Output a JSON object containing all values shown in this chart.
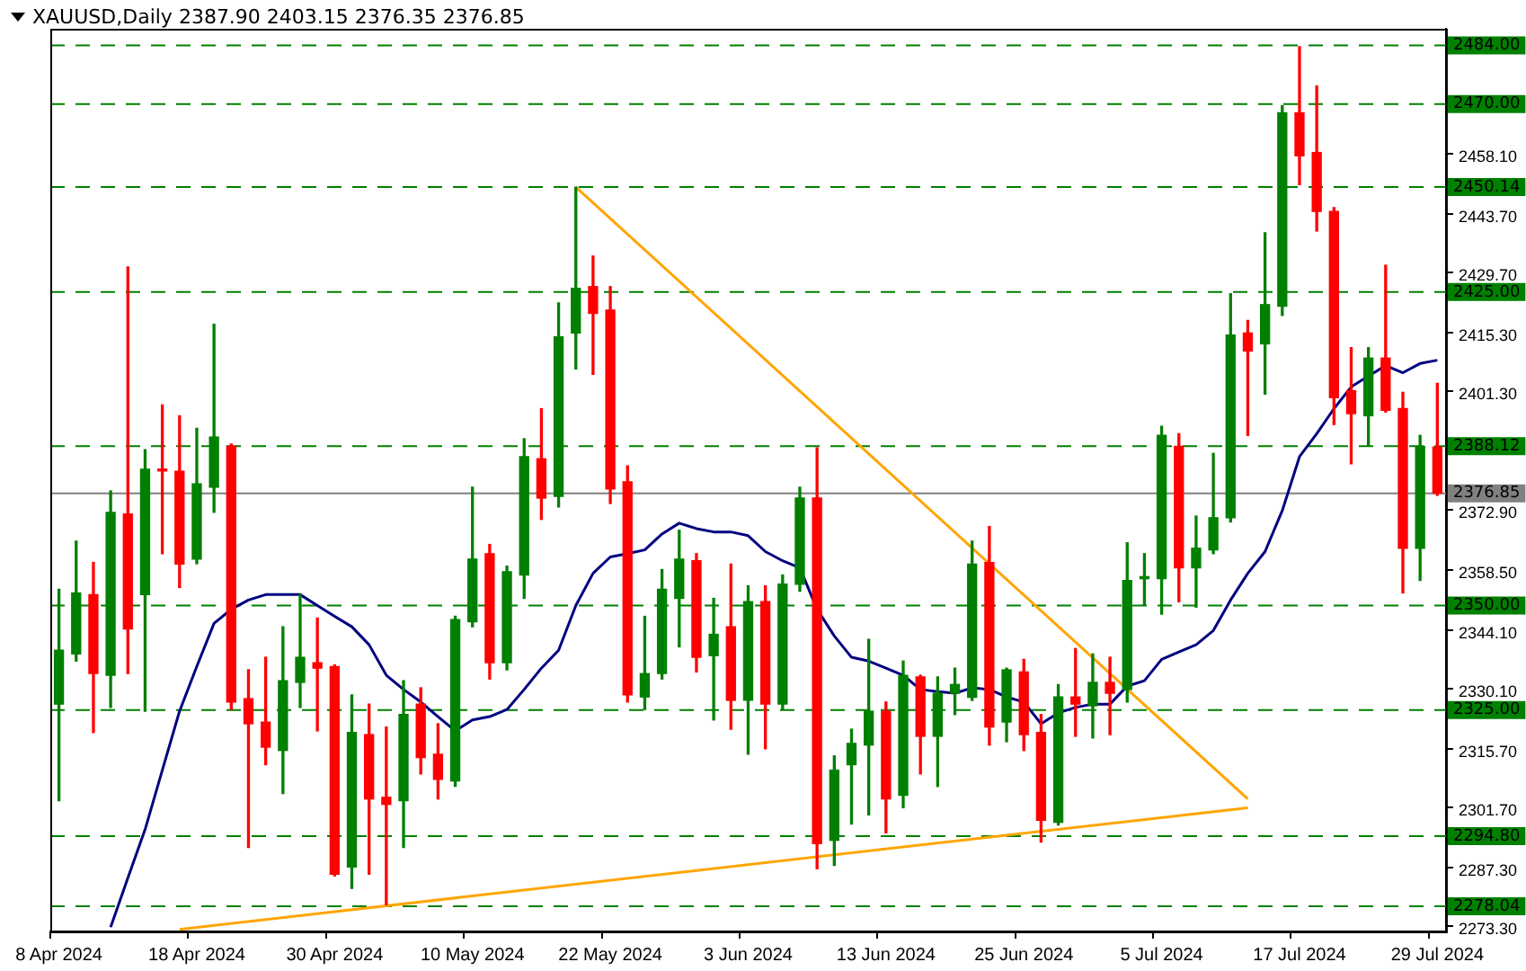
{
  "chart_data": {
    "type": "candlestick",
    "title": "XAUUSD,Daily 2387.90 2403.15 2376.35 2376.85",
    "categories": [
      "8 Apr 2024",
      null,
      null,
      null,
      null,
      null,
      null,
      null,
      "18 Apr 2024",
      null,
      null,
      null,
      null,
      null,
      null,
      null,
      "30 Apr 2024",
      null,
      null,
      null,
      null,
      null,
      null,
      null,
      "10 May 2024",
      null,
      null,
      null,
      null,
      null,
      null,
      null,
      "22 May 2024",
      null,
      null,
      null,
      null,
      null,
      null,
      null,
      "3 Jun 2024",
      null,
      null,
      null,
      null,
      null,
      null,
      null,
      "13 Jun 2024",
      null,
      null,
      null,
      null,
      null,
      null,
      null,
      "25 Jun 2024",
      null,
      null,
      null,
      null,
      null,
      null,
      null,
      "5 Jul 2024",
      null,
      null,
      null,
      null,
      null,
      null,
      null,
      "17 Jul 2024",
      null,
      null,
      null,
      null,
      null,
      null,
      null,
      "29 Jul 2024"
    ],
    "ohlc": [
      [
        2326.4,
        2353.9,
        2303.3,
        2339.3
      ],
      [
        2338.4,
        2365.4,
        2336.7,
        2353.0
      ],
      [
        2352.6,
        2360.3,
        2319.6,
        2333.7
      ],
      [
        2333.3,
        2377.4,
        2325.6,
        2372.3
      ],
      [
        2371.9,
        2431.0,
        2333.7,
        2344.4
      ],
      [
        2352.6,
        2387.3,
        2324.7,
        2382.6
      ],
      [
        2382.6,
        2398.0,
        2362.4,
        2382.2
      ],
      [
        2382.1,
        2395.4,
        2354.3,
        2359.9
      ],
      [
        2361.1,
        2392.4,
        2360.0,
        2379.1
      ],
      [
        2378.3,
        2417.3,
        2372.3,
        2390.3
      ],
      [
        2388.1,
        2388.6,
        2325.1,
        2326.9
      ],
      [
        2327.7,
        2334.6,
        2292.1,
        2321.7
      ],
      [
        2322.1,
        2337.6,
        2311.9,
        2316.1
      ],
      [
        2315.3,
        2344.9,
        2305.0,
        2332.0
      ],
      [
        2331.6,
        2352.6,
        2325.6,
        2337.6
      ],
      [
        2336.3,
        2347.0,
        2320.0,
        2335.0
      ],
      [
        2335.4,
        2335.8,
        2285.3,
        2285.7
      ],
      [
        2287.4,
        2328.6,
        2282.3,
        2319.6
      ],
      [
        2319.1,
        2326.4,
        2285.7,
        2303.7
      ],
      [
        2304.1,
        2320.9,
        2278.4,
        2302.4
      ],
      [
        2303.3,
        2332.0,
        2292.1,
        2323.9
      ],
      [
        2326.4,
        2330.3,
        2309.7,
        2313.6
      ],
      [
        2314.4,
        2321.7,
        2303.7,
        2308.4
      ],
      [
        2308.0,
        2347.4,
        2306.7,
        2346.6
      ],
      [
        2346.1,
        2378.3,
        2344.9,
        2361.1
      ],
      [
        2362.4,
        2364.6,
        2332.4,
        2336.3
      ],
      [
        2336.3,
        2359.4,
        2334.6,
        2358.1
      ],
      [
        2357.3,
        2389.9,
        2351.7,
        2385.6
      ],
      [
        2385.1,
        2397.1,
        2370.6,
        2375.7
      ],
      [
        2376.1,
        2422.4,
        2373.6,
        2414.3
      ],
      [
        2415.2,
        2450.1,
        2406.6,
        2425.9
      ],
      [
        2426.3,
        2433.6,
        2405.3,
        2419.9
      ],
      [
        2420.7,
        2426.3,
        2374.4,
        2377.9
      ],
      [
        2379.6,
        2383.4,
        2326.9,
        2328.6
      ],
      [
        2328.1,
        2347.4,
        2325.1,
        2333.7
      ],
      [
        2333.7,
        2358.6,
        2332.4,
        2353.9
      ],
      [
        2351.7,
        2368.0,
        2340.1,
        2361.1
      ],
      [
        2360.7,
        2362.4,
        2334.1,
        2337.6
      ],
      [
        2338.0,
        2351.7,
        2322.6,
        2343.1
      ],
      [
        2344.9,
        2359.9,
        2320.4,
        2327.3
      ],
      [
        2327.3,
        2354.7,
        2314.4,
        2350.9
      ],
      [
        2350.9,
        2354.7,
        2315.7,
        2326.4
      ],
      [
        2326.4,
        2357.3,
        2325.1,
        2355.1
      ],
      [
        2355.1,
        2378.3,
        2353.4,
        2375.7
      ],
      [
        2375.7,
        2387.7,
        2287.0,
        2293.0
      ],
      [
        2293.8,
        2314.0,
        2287.8,
        2310.6
      ],
      [
        2311.9,
        2320.4,
        2297.7,
        2317.0
      ],
      [
        2316.6,
        2341.9,
        2299.9,
        2324.7
      ],
      [
        2324.7,
        2326.9,
        2295.6,
        2303.7
      ],
      [
        2304.6,
        2336.7,
        2301.6,
        2333.3
      ],
      [
        2332.9,
        2333.3,
        2309.7,
        2318.7
      ],
      [
        2318.7,
        2332.9,
        2306.7,
        2329.0
      ],
      [
        2329.0,
        2335.0,
        2323.9,
        2331.1
      ],
      [
        2328.0,
        2365.4,
        2327.3,
        2359.9
      ],
      [
        2360.3,
        2368.9,
        2316.6,
        2320.9
      ],
      [
        2322.1,
        2335.0,
        2317.4,
        2334.6
      ],
      [
        2334.1,
        2337.1,
        2315.3,
        2319.1
      ],
      [
        2319.6,
        2323.9,
        2293.4,
        2298.6
      ],
      [
        2298.1,
        2331.1,
        2297.5,
        2328.1
      ],
      [
        2328.1,
        2339.7,
        2318.7,
        2326.4
      ],
      [
        2326.0,
        2338.4,
        2318.3,
        2331.6
      ],
      [
        2331.6,
        2337.6,
        2319.1,
        2329.0
      ],
      [
        2329.9,
        2365.0,
        2326.9,
        2356.0
      ],
      [
        2356.4,
        2362.4,
        2350.0,
        2356.9
      ],
      [
        2356.4,
        2392.9,
        2347.9,
        2390.7
      ],
      [
        2388.1,
        2391.1,
        2350.9,
        2359.0
      ],
      [
        2359.0,
        2371.4,
        2349.6,
        2363.7
      ],
      [
        2363.3,
        2386.4,
        2362.4,
        2371.0
      ],
      [
        2371.0,
        2424.6,
        2370.0,
        2414.7
      ],
      [
        2415.2,
        2418.2,
        2390.7,
        2410.9
      ],
      [
        2412.6,
        2439.2,
        2400.6,
        2422.0
      ],
      [
        2421.6,
        2469.6,
        2419.4,
        2467.9
      ],
      [
        2467.9,
        2483.7,
        2450.7,
        2457.6
      ],
      [
        2458.4,
        2474.3,
        2439.6,
        2444.3
      ],
      [
        2444.3,
        2445.2,
        2393.3,
        2399.7
      ],
      [
        2401.4,
        2411.7,
        2383.9,
        2395.9
      ],
      [
        2395.4,
        2411.7,
        2388.1,
        2409.2
      ],
      [
        2409.2,
        2431.4,
        2396.3,
        2396.7
      ],
      [
        2397.1,
        2401.0,
        2353.0,
        2363.7
      ],
      [
        2363.7,
        2390.7,
        2356.0,
        2388.1
      ],
      [
        2387.9,
        2403.15,
        2376.35,
        2376.85
      ]
    ],
    "colors": [
      "#008000",
      "#008000",
      "#ff0000",
      "#008000",
      "#ff0000",
      "#008000",
      "#ff0000",
      "#ff0000",
      "#008000",
      "#008000",
      "#ff0000",
      "#ff0000",
      "#ff0000",
      "#008000",
      "#008000",
      "#ff0000",
      "#ff0000",
      "#008000",
      "#ff0000",
      "#ff0000",
      "#008000",
      "#ff0000",
      "#ff0000",
      "#008000",
      "#008000",
      "#ff0000",
      "#008000",
      "#008000",
      "#ff0000",
      "#008000",
      "#008000",
      "#ff0000",
      "#ff0000",
      "#ff0000",
      "#008000",
      "#008000",
      "#008000",
      "#ff0000",
      "#008000",
      "#ff0000",
      "#008000",
      "#ff0000",
      "#008000",
      "#008000",
      "#ff0000",
      "#008000",
      "#008000",
      "#008000",
      "#ff0000",
      "#008000",
      "#ff0000",
      "#008000",
      "#008000",
      "#008000",
      "#ff0000",
      "#008000",
      "#ff0000",
      "#ff0000",
      "#008000",
      "#ff0000",
      "#008000",
      "#ff0000",
      "#008000",
      "#008000",
      "#008000",
      "#ff0000",
      "#008000",
      "#008000",
      "#008000",
      "#ff0000",
      "#008000",
      "#008000",
      "#ff0000",
      "#ff0000",
      "#ff0000",
      "#ff0000",
      "#008000",
      "#ff0000",
      "#ff0000",
      "#008000",
      "#ff0000"
    ],
    "series": [
      {
        "type": "line",
        "color": "#000080",
        "values": [
          null,
          null,
          null,
          2273,
          2284.8,
          2296.4,
          2310.6,
          2324.7,
          2335.4,
          2345.7,
          2349.1,
          2351.3,
          2352.6,
          2352.6,
          2352.6,
          2350,
          2347.4,
          2344.9,
          2340.6,
          2333.3,
          2329.9,
          2326.9,
          2323.4,
          2320,
          2322.6,
          2323.4,
          2325.1,
          2329.9,
          2335,
          2339.3,
          2350,
          2357.7,
          2361.6,
          2362.4,
          2363.3,
          2367.1,
          2369.7,
          2368.4,
          2367.6,
          2367.6,
          2366.7,
          2362.9,
          2360.7,
          2359,
          2349.1,
          2342.7,
          2337.6,
          2336.7,
          2335,
          2333.3,
          2329.9,
          2329.4,
          2329,
          2330.3,
          2329.9,
          2328.1,
          2326.9,
          2321.7,
          2324.3,
          2325.6,
          2326.4,
          2326.4,
          2330.7,
          2332,
          2337.1,
          2338.9,
          2340.6,
          2344,
          2351.3,
          2357.7,
          2362.9,
          2372.7,
          2385.6,
          2391.1,
          2397.1,
          2402.3,
          2404.9,
          2407.4,
          2405.7,
          2407.9,
          2408.7
        ]
      },
      {
        "type": "line",
        "color": "#ffa500",
        "values": [
          null,
          null,
          null,
          null,
          null,
          null,
          null,
          2272.5,
          null,
          null,
          null,
          null,
          null,
          null,
          null,
          null,
          null,
          null,
          null,
          null,
          null,
          null,
          null,
          null,
          null,
          null,
          null,
          null,
          null,
          null,
          null,
          null,
          null,
          null,
          null,
          null,
          null,
          null,
          null,
          null,
          null,
          null,
          null,
          null,
          null,
          null,
          null,
          null,
          null,
          null,
          null,
          null,
          null,
          null,
          null,
          null,
          null,
          null,
          null,
          null,
          null,
          null,
          null,
          null,
          null,
          null,
          null,
          null,
          null,
          2301.6,
          null,
          null,
          null,
          null,
          null,
          null,
          null,
          null,
          null,
          null,
          null
        ]
      },
      {
        "type": "line",
        "color": "#ffa500",
        "values": [
          null,
          null,
          null,
          null,
          null,
          null,
          null,
          null,
          null,
          null,
          null,
          null,
          null,
          null,
          null,
          null,
          null,
          null,
          null,
          null,
          null,
          null,
          null,
          null,
          null,
          null,
          null,
          null,
          null,
          null,
          2450.1,
          null,
          null,
          null,
          null,
          null,
          null,
          null,
          null,
          null,
          null,
          null,
          null,
          null,
          null,
          null,
          null,
          null,
          null,
          null,
          null,
          null,
          null,
          null,
          null,
          null,
          null,
          null,
          null,
          null,
          null,
          null,
          null,
          null,
          null,
          null,
          null,
          null,
          null,
          2303.7,
          null,
          null,
          null,
          null,
          null,
          null,
          null,
          null,
          null,
          null,
          null
        ]
      }
    ],
    "ylim": [
      2272,
      2488
    ],
    "yticks": [
      {
        "value": 2273.3,
        "label": "2273.30"
      },
      {
        "value": 2287.3,
        "label": "2287.30"
      },
      {
        "value": 2301.7,
        "label": "2301.70"
      },
      {
        "value": 2315.7,
        "label": "2315.70"
      },
      {
        "value": 2330.1,
        "label": "2330.10"
      },
      {
        "value": 2344.1,
        "label": "2344.10"
      },
      {
        "value": 2358.5,
        "label": "2358.50"
      },
      {
        "value": 2372.9,
        "label": "2372.90"
      },
      {
        "value": 2401.3,
        "label": "2401.30"
      },
      {
        "value": 2415.3,
        "label": "2415.30"
      },
      {
        "value": 2429.7,
        "label": "2429.70"
      },
      {
        "value": 2443.7,
        "label": "2443.70"
      },
      {
        "value": 2458.1,
        "label": "2458.10"
      }
    ],
    "ref_lines": [
      {
        "axis": "y",
        "value": 2484,
        "label": "2484.00",
        "color": "#008000",
        "line_style": "dashed"
      },
      {
        "axis": "y",
        "value": 2470,
        "label": "2470.00",
        "color": "#008000",
        "line_style": "dashed"
      },
      {
        "axis": "y",
        "value": 2450.14,
        "label": "2450.14",
        "color": "#008000",
        "line_style": "dashed"
      },
      {
        "axis": "y",
        "value": 2425,
        "label": "2425.00",
        "color": "#008000",
        "line_style": "dashed"
      },
      {
        "axis": "y",
        "value": 2388.12,
        "label": "2388.12",
        "color": "#008000",
        "line_style": "dashed"
      },
      {
        "axis": "y",
        "value": 2376.85,
        "label": "2376.85",
        "color": "#808080",
        "line_style": "solid"
      },
      {
        "axis": "y",
        "value": 2350,
        "label": "2350.00",
        "color": "#008000",
        "line_style": "dashed"
      },
      {
        "axis": "y",
        "value": 2325,
        "label": "2325.00",
        "color": "#008000",
        "line_style": "dashed"
      },
      {
        "axis": "y",
        "value": 2294.8,
        "label": "2294.80",
        "color": "#008000",
        "line_style": "dashed"
      },
      {
        "axis": "y",
        "value": 2278.04,
        "label": "2278.04",
        "color": "#008000",
        "line_style": "dashed"
      }
    ],
    "grid": false,
    "legend": false
  }
}
